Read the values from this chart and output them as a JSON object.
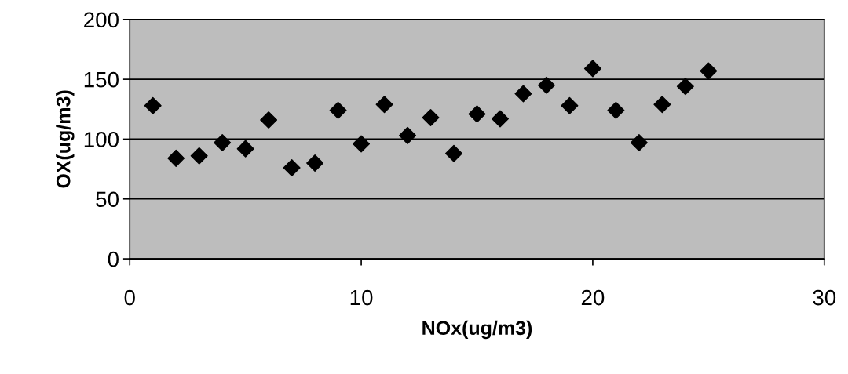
{
  "chart_data": {
    "type": "scatter",
    "xlabel": "NOx(ug/m3)",
    "ylabel": "OX(ug/m3)",
    "x": [
      1,
      2,
      3,
      4,
      5,
      6,
      7,
      8,
      9,
      10,
      11,
      12,
      13,
      14,
      15,
      16,
      17,
      18,
      19,
      20,
      21,
      22,
      23,
      24,
      25
    ],
    "series": [
      {
        "color": "#000000",
        "values": [
          128,
          84,
          86,
          97,
          92,
          116,
          76,
          80,
          124,
          96,
          129,
          103,
          118,
          88,
          121,
          117,
          138,
          145,
          128,
          159,
          124,
          97,
          129,
          144,
          157
        ]
      }
    ],
    "xlim": [
      0,
      30
    ],
    "xticks": [
      0,
      10,
      20,
      30
    ],
    "ylim": [
      0,
      200
    ],
    "yticks": [
      0,
      50,
      100,
      150,
      200
    ],
    "grid": "y",
    "marker": "diamond",
    "legend": false
  }
}
